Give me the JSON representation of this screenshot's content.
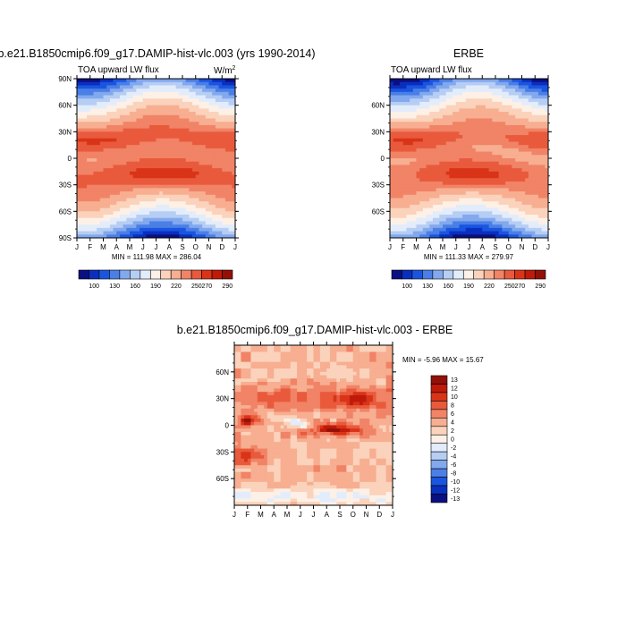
{
  "chart_data": [
    {
      "type": "heatmap",
      "title": "b.e21.B1850cmip6.f09_g17.DAMIP-hist-vlc.003 (yrs 1990-2014)",
      "subtitle": "TOA upward LW flux",
      "units_prefix": "W/m",
      "units_exp": "2",
      "stats": "MIN = 111.98 MAX = 286.04",
      "x_ticks": [
        "J",
        "F",
        "M",
        "A",
        "M",
        "J",
        "J",
        "A",
        "S",
        "O",
        "N",
        "D",
        "J"
      ],
      "y_ticks": [
        "90N",
        "60N",
        "30N",
        "0",
        "30S",
        "60S",
        "90S"
      ],
      "ylim": [
        -90,
        90
      ],
      "color_levels": [
        "100",
        "130",
        "160",
        "190",
        "220",
        "250",
        "270",
        "290"
      ],
      "colors": [
        "#0a0f82",
        "#0a2fbe",
        "#1a55e0",
        "#4b7fe6",
        "#82a8ee",
        "#b6cdf4",
        "#e2ecfb",
        "#fdf0e6",
        "#fbd2bb",
        "#f7ae91",
        "#f18366",
        "#e95a3c",
        "#d93418",
        "#bf1a0a",
        "#921008"
      ],
      "grid": false,
      "legend_position": "bottom"
    },
    {
      "type": "heatmap",
      "title": "ERBE",
      "subtitle": "TOA upward LW flux",
      "stats": "MIN = 111.33 MAX = 279.97",
      "x_ticks": [
        "J",
        "F",
        "M",
        "A",
        "M",
        "J",
        "J",
        "A",
        "S",
        "O",
        "N",
        "D",
        "J"
      ],
      "y_ticks": [
        "60N",
        "30N",
        "0",
        "30S",
        "60S"
      ],
      "ylim": [
        -90,
        90
      ],
      "color_levels": [
        "100",
        "130",
        "160",
        "190",
        "220",
        "250",
        "270",
        "290"
      ],
      "grid": false,
      "legend_position": "bottom"
    },
    {
      "type": "heatmap",
      "title": "b.e21.B1850cmip6.f09_g17.DAMIP-hist-vlc.003 - ERBE",
      "stats": "MIN =  -5.96 MAX =  15.67",
      "x_ticks": [
        "J",
        "F",
        "M",
        "A",
        "M",
        "J",
        "J",
        "A",
        "S",
        "O",
        "N",
        "D",
        "J"
      ],
      "y_ticks": [
        "60N",
        "30N",
        "0",
        "30S",
        "60S"
      ],
      "ylim": [
        -90,
        90
      ],
      "color_levels": [
        "13",
        "12",
        "10",
        "8",
        "6",
        "4",
        "2",
        "0",
        "-2",
        "-4",
        "-6",
        "-8",
        "-10",
        "-12",
        "-13"
      ],
      "colors": [
        "#921008",
        "#bf1a0a",
        "#d93418",
        "#e95a3c",
        "#f18366",
        "#f7ae91",
        "#fbd2bb",
        "#fdf0e6",
        "#e2ecfb",
        "#b6cdf4",
        "#82a8ee",
        "#4b7fe6",
        "#1a55e0",
        "#0a2fbe",
        "#0a0f82"
      ],
      "grid": false,
      "legend_position": "right"
    }
  ]
}
